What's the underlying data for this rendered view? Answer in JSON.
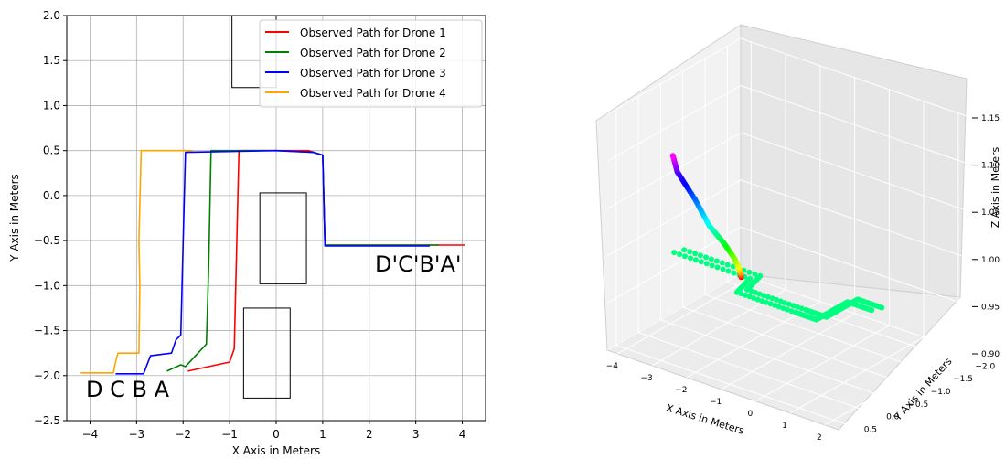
{
  "chart_data": [
    {
      "type": "line",
      "xlabel": "X Axis in Meters",
      "ylabel": "Y Axis in Meters",
      "xlim": [
        -4.5,
        4.5
      ],
      "ylim": [
        -2.5,
        2.0
      ],
      "xticks": [
        -4,
        -3,
        -2,
        -1,
        0,
        1,
        2,
        3,
        4
      ],
      "xtick_labels": [
        "−4",
        "−3",
        "−2",
        "−1",
        "0",
        "1",
        "2",
        "3",
        "4"
      ],
      "yticks": [
        2.0,
        1.5,
        1.0,
        0.5,
        0.0,
        -0.5,
        -1.0,
        -1.5,
        -2.0,
        -2.5
      ],
      "ytick_labels": [
        "2.0",
        "1.5",
        "1.0",
        "0.5",
        "0.0",
        "−0.5",
        "−1.0",
        "−1.5",
        "−2.0",
        "−2.5"
      ],
      "grid": true,
      "legend_position": "top-right",
      "series": [
        {
          "name": "Observed Path for Drone 1",
          "color": "#ff0000",
          "x": [
            -1.9,
            -1.0,
            -0.9,
            -0.8,
            0.0,
            0.7,
            1.0,
            1.05,
            2.0,
            3.0,
            4.05
          ],
          "y": [
            -1.95,
            -1.85,
            -1.7,
            0.5,
            0.5,
            0.5,
            0.45,
            -0.55,
            -0.55,
            -0.55,
            -0.55
          ]
        },
        {
          "name": "Observed Path for Drone 2",
          "color": "#008000",
          "x": [
            -2.35,
            -2.05,
            -1.95,
            -1.5,
            -1.45,
            -1.4,
            0.0,
            0.8,
            1.0,
            1.05,
            2.0,
            3.5
          ],
          "y": [
            -1.95,
            -1.88,
            -1.9,
            -1.65,
            -0.8,
            0.5,
            0.5,
            0.48,
            0.45,
            -0.55,
            -0.55,
            -0.55
          ]
        },
        {
          "name": "Observed Path for Drone 3",
          "color": "#0000ff",
          "x": [
            -3.45,
            -2.85,
            -2.7,
            -2.25,
            -2.15,
            -2.05,
            -1.95,
            0.0,
            0.8,
            1.0,
            1.05,
            2.0,
            3.3
          ],
          "y": [
            -1.98,
            -1.98,
            -1.78,
            -1.75,
            -1.6,
            -1.55,
            0.48,
            0.5,
            0.48,
            0.45,
            -0.56,
            -0.56,
            -0.56
          ]
        },
        {
          "name": "Observed Path for Drone 4",
          "color": "#ffa500",
          "x": [
            -4.2,
            -3.5,
            -3.45,
            -3.4,
            -3.35,
            -2.95,
            -2.93,
            -2.95,
            -2.9,
            -2.5,
            -1.8
          ],
          "y": [
            -1.97,
            -1.97,
            -1.85,
            -1.75,
            -1.75,
            -1.75,
            -1.0,
            -0.5,
            0.5,
            0.5,
            0.5
          ]
        }
      ],
      "obstacles": [
        {
          "x": [
            -0.95,
            -0.0
          ],
          "y": [
            1.2,
            2.0
          ]
        },
        {
          "x": [
            -0.35,
            0.65
          ],
          "y": [
            -0.98,
            0.03
          ]
        },
        {
          "x": [
            -0.7,
            0.3
          ],
          "y": [
            -2.25,
            -1.25
          ]
        }
      ],
      "annotations": [
        {
          "text": "D C B A",
          "x": -3.5,
          "y": -2.25
        },
        {
          "text": "D'C'B'A'",
          "x": 2.55,
          "y": -0.85
        }
      ]
    },
    {
      "type": "scatter",
      "projection": "3d",
      "xlabel": "X Axis in Meters",
      "ylabel": "Y Axis in Meters",
      "zlabel": "Z Axis in Meters",
      "xlim": [
        -4.3,
        2.4
      ],
      "ylim": [
        -2.3,
        0.7
      ],
      "zlim": [
        0.9,
        1.15
      ],
      "xticks": [
        -4,
        -3,
        -2,
        -1,
        0,
        1,
        2
      ],
      "xtick_labels": [
        "−4",
        "−3",
        "−2",
        "−1",
        "0",
        "1",
        "2"
      ],
      "yticks": [
        0.5,
        0.0,
        -0.5,
        -1.0,
        -1.5,
        -2.0
      ],
      "ytick_labels": [
        "0.5",
        "0.0",
        "−0.5",
        "−1.0",
        "−1.5",
        "−2.0"
      ],
      "zticks": [
        0.9,
        0.95,
        1.0,
        1.05,
        1.1,
        1.15
      ],
      "ztick_labels": [
        "0.90",
        "0.95",
        "1.00",
        "1.05",
        "1.10",
        "1.15"
      ],
      "grid": true,
      "paths": [
        {
          "name": "",
          "color": "#00ff80",
          "x": [
            -3.2,
            -1.0,
            -0.8,
            0.9,
            1.5,
            1.5,
            1.5,
            2.2
          ],
          "y": [
            0.05,
            0.05,
            0.5,
            0.5,
            0.5,
            0.1,
            -0.2,
            -0.2
          ],
          "z": [
            1.0,
            1.0,
            1.0,
            1.0,
            1.0,
            1.0,
            1.0,
            1.0
          ]
        },
        {
          "name": "",
          "color": "#00ff80",
          "x": [
            -3.1,
            -0.9,
            -0.7,
            1.0,
            1.6,
            1.6,
            1.6,
            2.3
          ],
          "y": [
            -0.1,
            -0.1,
            0.35,
            0.35,
            0.35,
            -0.05,
            -0.35,
            -0.35
          ],
          "z": [
            1.0,
            1.0,
            1.0,
            1.0,
            1.0,
            1.0,
            1.0,
            1.0
          ]
        },
        {
          "name": "",
          "color": "#gradient",
          "x": [
            -3.9,
            -3.8,
            -3.7,
            -3.5,
            -3.4,
            -3.3,
            -3.3,
            -3.3
          ],
          "y": [
            -2.0,
            -1.9,
            -1.7,
            -1.3,
            -0.9,
            -0.5,
            -0.1,
            0.0
          ],
          "z": [
            0.91,
            0.92,
            0.94,
            0.97,
            1.0,
            1.04,
            1.08,
            1.1
          ]
        }
      ]
    }
  ]
}
